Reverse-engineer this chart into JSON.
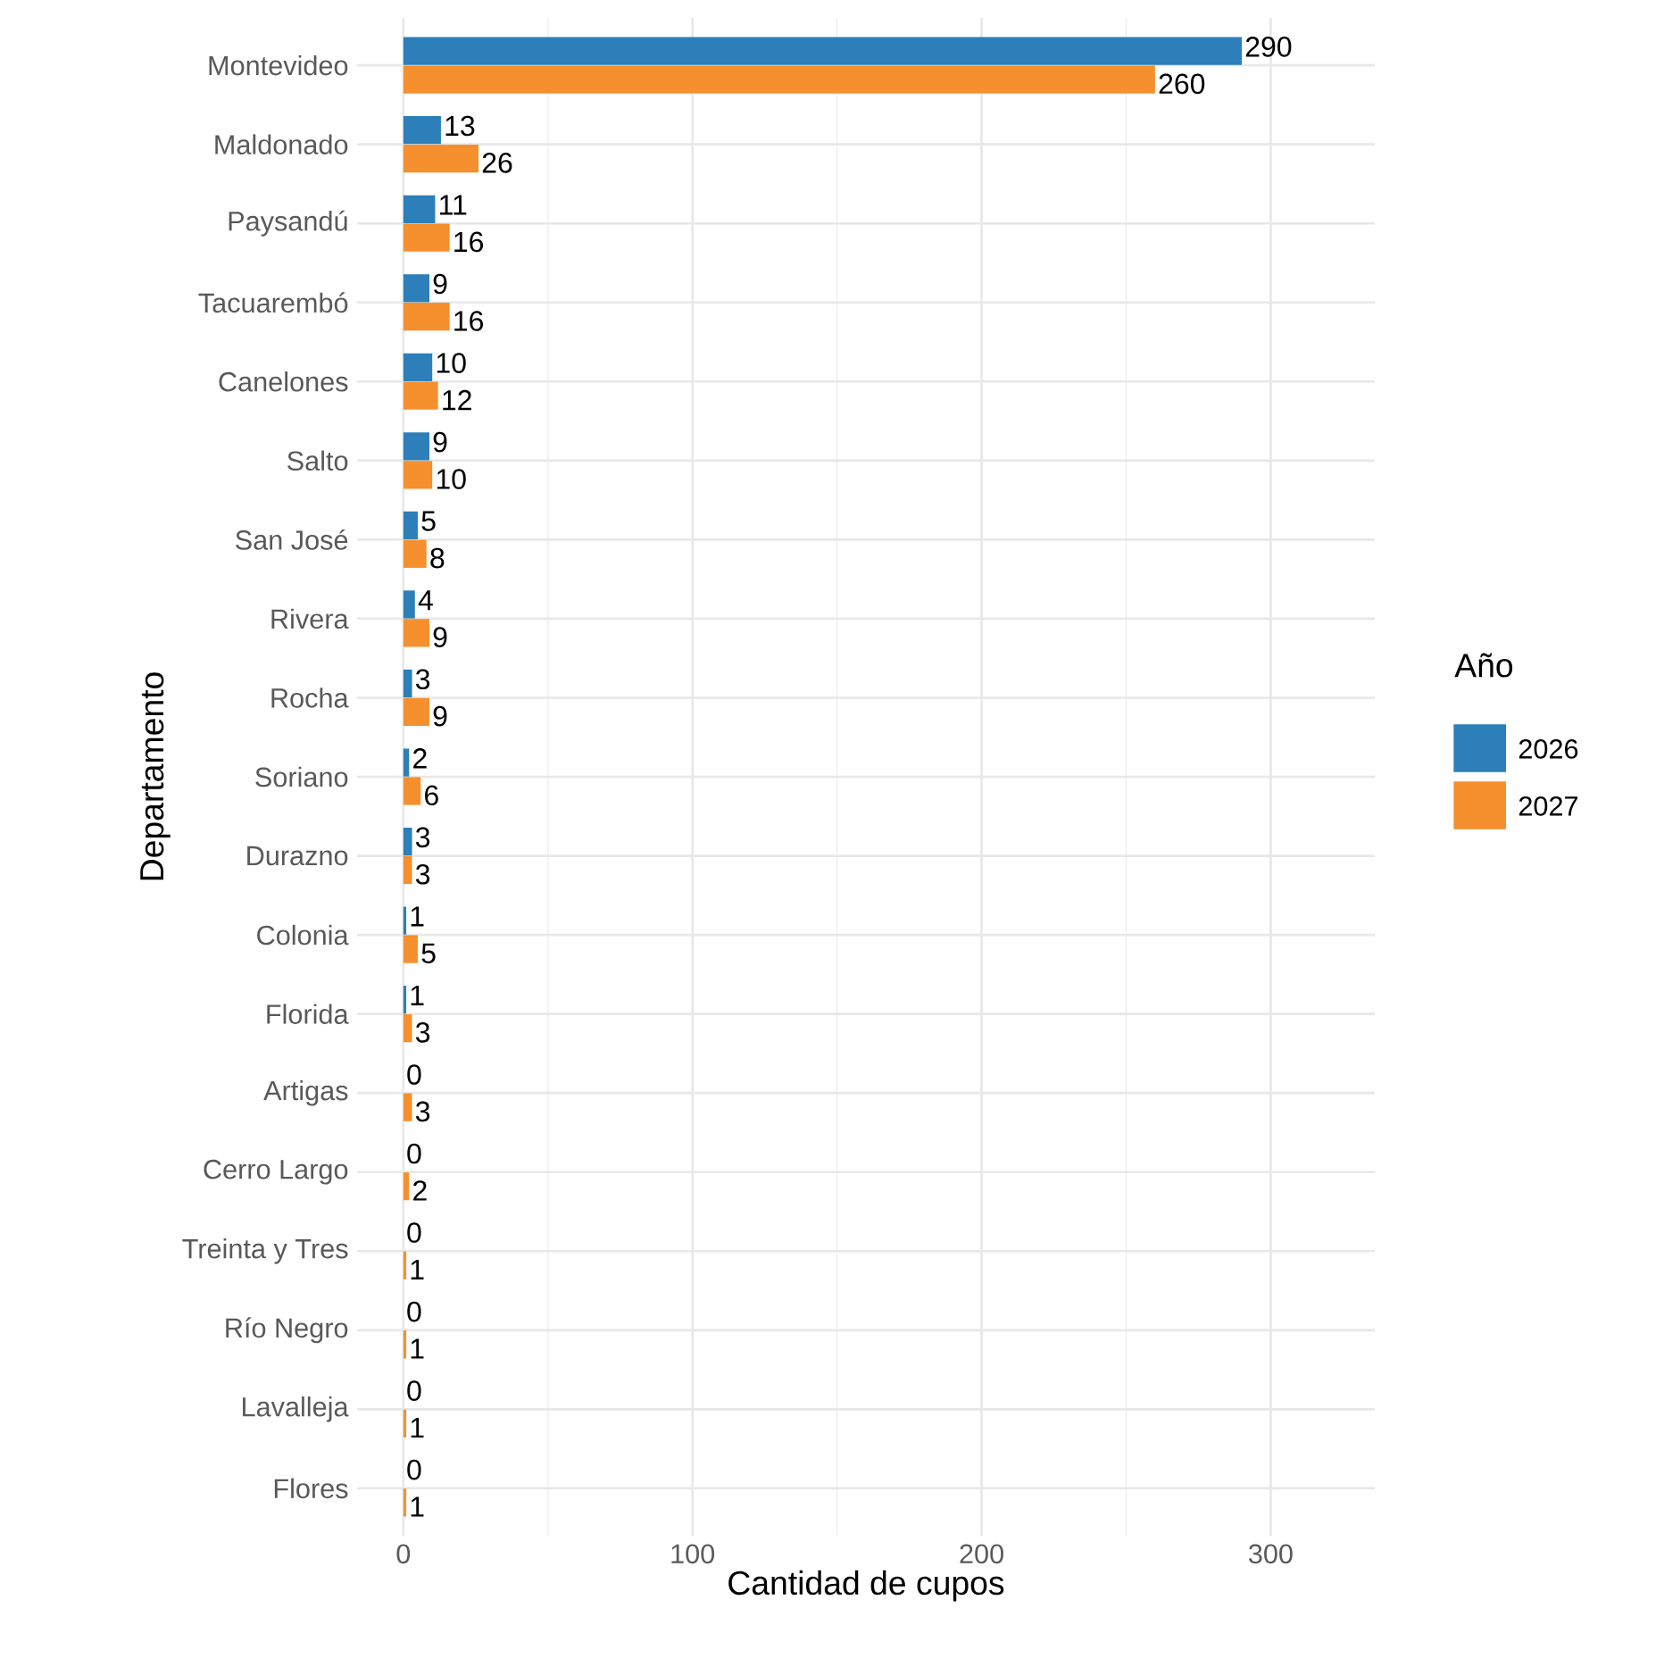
{
  "chart_data": {
    "type": "bar",
    "orientation": "horizontal",
    "xlabel": "Cantidad de cupos",
    "ylabel": "Departamento",
    "legend_title": "Año",
    "categories": [
      "Montevideo",
      "Maldonado",
      "Paysandú",
      "Tacuarembó",
      "Canelones",
      "Salto",
      "San José",
      "Rivera",
      "Rocha",
      "Soriano",
      "Durazno",
      "Colonia",
      "Florida",
      "Artigas",
      "Cerro Largo",
      "Treinta y Tres",
      "Río Negro",
      "Lavalleja",
      "Flores"
    ],
    "series": [
      {
        "name": "2026",
        "color": "#2c7fb8",
        "values": [
          290,
          13,
          11,
          9,
          10,
          9,
          5,
          4,
          3,
          2,
          3,
          1,
          1,
          0,
          0,
          0,
          0,
          0,
          0
        ]
      },
      {
        "name": "2027",
        "color": "#f68f2e",
        "values": [
          260,
          26,
          16,
          16,
          12,
          10,
          8,
          9,
          9,
          6,
          3,
          5,
          3,
          3,
          2,
          1,
          1,
          1,
          1
        ]
      }
    ],
    "xlim": [
      -16,
      336
    ],
    "xticks": [
      0,
      100,
      200,
      300
    ],
    "grid": true,
    "legend": "right",
    "data_labels": true
  }
}
